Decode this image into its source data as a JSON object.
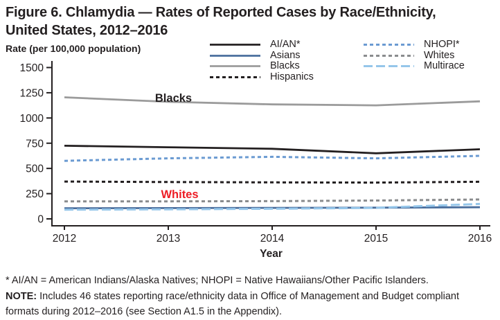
{
  "title": {
    "line1": "Figure 6. Chlamydia — Rates of Reported Cases by Race/Ethnicity,",
    "line2": "United States, 2012–2016"
  },
  "y_axis_label": "Rate (per 100,000 population)",
  "x_axis_label": "Year",
  "footnotes": {
    "line1": "* AI/AN = American Indians/Alaska Natives; NHOPI = Native Hawaiians/Other Pacific Islanders.",
    "note_label": "NOTE:",
    "note_text": " Includes 46 states reporting race/ethnicity data in Office of Management and Budget compliant formats during 2012–2016 (see Section A1.5 in the Appendix)."
  },
  "colors": {
    "axis": "#231f20",
    "text": "#231f20",
    "annotation_red": "#ed1c24"
  },
  "chart_data": {
    "type": "line",
    "title": "Figure 6. Chlamydia — Rates of Reported Cases by Race/Ethnicity, United States, 2012–2016",
    "xlabel": "Year",
    "ylabel": "Rate (per 100,000 population)",
    "x": [
      2012,
      2013,
      2014,
      2015,
      2016
    ],
    "ylim": [
      0,
      1500
    ],
    "yticks": [
      0,
      250,
      500,
      750,
      1000,
      1250,
      1500
    ],
    "grid": false,
    "legend_position": "top",
    "series": [
      {
        "name": "AI/AN*",
        "color": "#231f20",
        "dash": "solid",
        "values": [
          725,
          710,
          695,
          650,
          690
        ]
      },
      {
        "name": "Asians",
        "color": "#4a6e9d",
        "dash": "solid",
        "values": [
          105,
          107,
          109,
          111,
          115
        ]
      },
      {
        "name": "Blacks",
        "color": "#9b9b9b",
        "dash": "solid",
        "values": [
          1205,
          1160,
          1135,
          1125,
          1165
        ]
      },
      {
        "name": "Hispanics",
        "color": "#231f20",
        "dash": "short",
        "values": [
          370,
          365,
          362,
          360,
          368
        ]
      },
      {
        "name": "NHOPI*",
        "color": "#6b9bd2",
        "dash": "short",
        "values": [
          575,
          600,
          615,
          600,
          625
        ]
      },
      {
        "name": "Whites",
        "color": "#8a8c8e",
        "dash": "short",
        "values": [
          174,
          174,
          176,
          182,
          192
        ]
      },
      {
        "name": "Multirace",
        "color": "#95c6ea",
        "dash": "long",
        "values": [
          91,
          95,
          100,
          109,
          148
        ]
      }
    ],
    "annotations": [
      {
        "text": "Blacks",
        "color": "#231f20",
        "x": 2013.05,
        "y": 1200
      },
      {
        "text": "Whites",
        "color": "#ed1c24",
        "x": 2013.11,
        "y": 247
      }
    ]
  }
}
